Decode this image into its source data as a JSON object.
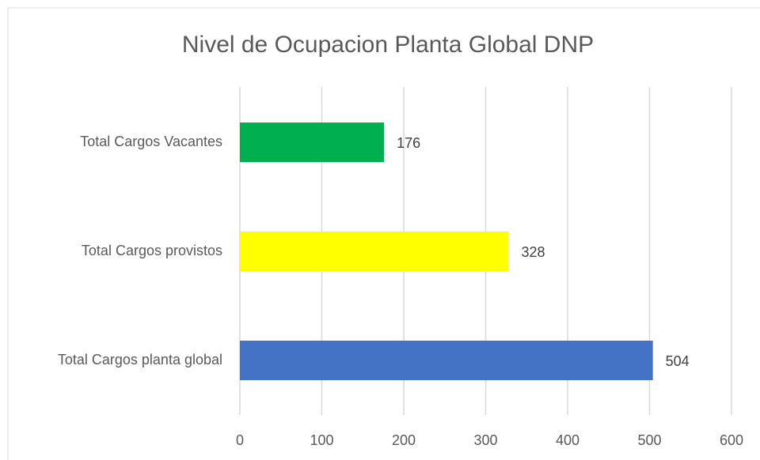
{
  "chart_data": {
    "type": "bar",
    "orientation": "horizontal",
    "title": "Nivel de Ocupacion Planta Global DNP",
    "categories": [
      "Total Cargos Vacantes",
      "Total Cargos provistos",
      "Total Cargos planta global"
    ],
    "values": [
      176,
      328,
      504
    ],
    "colors": [
      "#00b050",
      "#ffff00",
      "#4472c4"
    ],
    "xlim": [
      0,
      600
    ],
    "xticks": [
      0,
      100,
      200,
      300,
      400,
      500,
      600
    ],
    "grid": true
  }
}
